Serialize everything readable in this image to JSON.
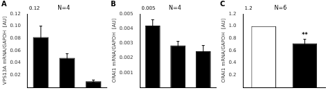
{
  "chart_data": [
    {
      "type": "bar",
      "title": "A",
      "subtitle": "N=4",
      "y_label": "VPS13A mRNA/GAPDH  [AU]",
      "categories": [
        null,
        null,
        null
      ],
      "values": [
        0.082,
        0.048,
        0.01
      ],
      "errors": [
        0.018,
        0.007,
        0.002
      ],
      "colors": [
        "black",
        "black",
        "black"
      ],
      "ylim": [
        0,
        0.12
      ],
      "yticks": [
        0.02,
        0.04,
        0.06,
        0.08,
        {
          "value": 0.1,
          "label": "0.10"
        },
        0.12
      ],
      "annotations": [
        {
          "text": "0.12",
          "y": 0.12
        }
      ],
      "grid": false,
      "tick_labels": "y"
    },
    {
      "type": "bar",
      "title": "B",
      "subtitle": "N=4",
      "y_label": "ORAI1 mRNA/GAPDH  [AU]",
      "categories": [
        null,
        null,
        null
      ],
      "values": [
        0.0042,
        0.00285,
        0.00245
      ],
      "errors": [
        0.0004,
        0.00028,
        0.0004
      ],
      "colors": [
        "black",
        "black",
        "black"
      ],
      "ylim": [
        0,
        0.005
      ],
      "yticks": [
        0.001,
        0.002,
        0.003,
        0.004,
        0.005
      ],
      "annotations": [
        {
          "text": "0.005",
          "y": 0.005
        }
      ],
      "grid": false,
      "tick_labels": "y"
    },
    {
      "type": "bar",
      "title": "C",
      "subtitle": "N=6",
      "y_label": "ORAI1 mRNA/GAPDH  [AU]",
      "categories": [
        null,
        null
      ],
      "values": [
        1.0,
        0.72
      ],
      "errors": [
        0,
        0.065
      ],
      "colors": [
        "white",
        "black"
      ],
      "ylim": [
        0,
        1.2
      ],
      "yticks": [
        0.2,
        0.4,
        0.6,
        0.8,
        {
          "value": 1.0,
          "label": "1.0"
        },
        1.2
      ],
      "annotations": [
        {
          "text": "1.2",
          "y": 1.2
        },
        {
          "text": "**",
          "bar": 1
        }
      ],
      "grid": false,
      "tick_labels": "y"
    }
  ]
}
